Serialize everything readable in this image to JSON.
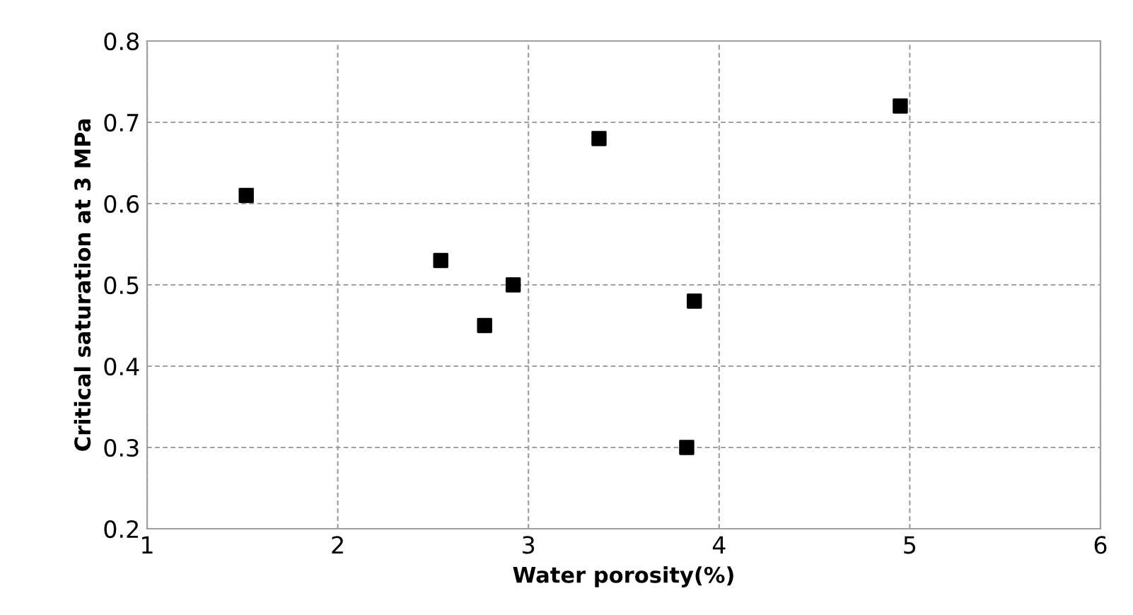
{
  "chart_data": {
    "type": "scatter",
    "xlabel": "Water porosity(%)",
    "ylabel": "Critical saturation at 3 MPa",
    "x": [
      1.52,
      2.54,
      2.77,
      2.92,
      3.37,
      3.83,
      3.87,
      4.95
    ],
    "values": [
      0.61,
      0.53,
      0.45,
      0.5,
      0.68,
      0.3,
      0.48,
      0.72
    ],
    "color": "#000000",
    "marker": "square",
    "xlim": [
      1,
      6
    ],
    "xticks": [
      1,
      2,
      3,
      4,
      5,
      6
    ],
    "ylim": [
      0.2,
      0.8
    ],
    "yticks": [
      0.2,
      0.3,
      0.4,
      0.5,
      0.6,
      0.7,
      0.8
    ],
    "grid": true,
    "legend": false
  }
}
